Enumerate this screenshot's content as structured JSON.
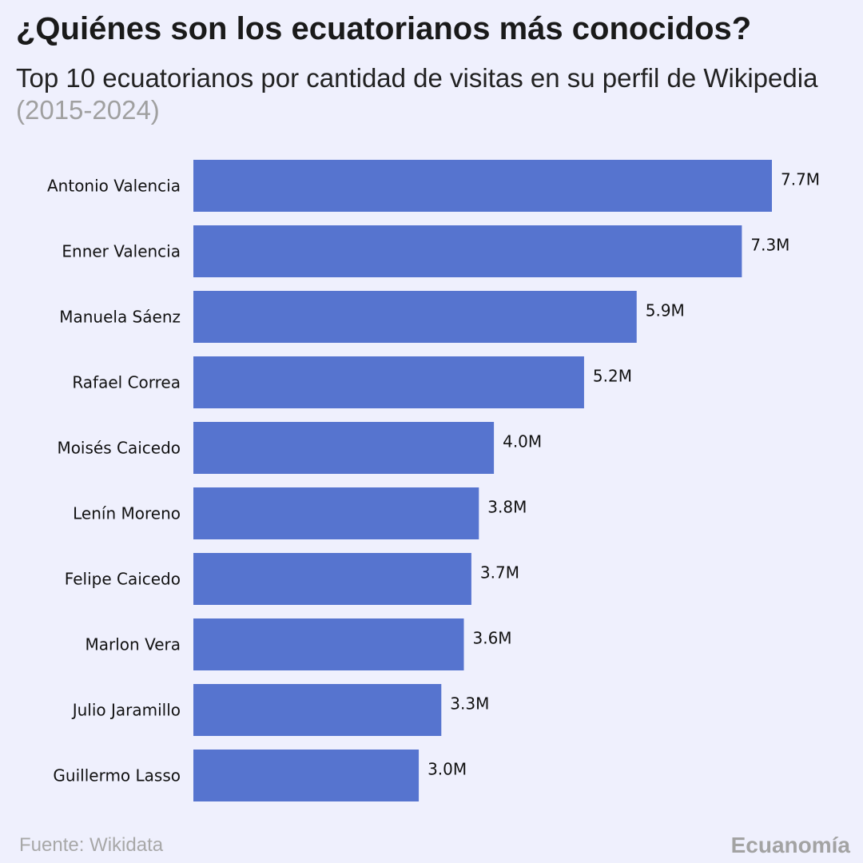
{
  "title": "¿Quiénes son los ecuatorianos más conocidos?",
  "subtitle": "Top 10 ecuatorianos por cantidad de visitas en su perfil de Wikipedia",
  "subtitle_period": "(2015-2024)",
  "source": "Fuente: Wikidata",
  "brand": "Ecuanomía",
  "colors": {
    "bar": "#5674cf",
    "background": "#eff0fd"
  },
  "chart_data": {
    "type": "bar",
    "orientation": "horizontal",
    "categories": [
      "Antonio Valencia",
      "Enner Valencia",
      "Manuela Sáenz",
      "Rafael Correa",
      "Moisés Caicedo",
      "Lenín Moreno",
      "Felipe Caicedo",
      "Marlon Vera",
      "Julio Jaramillo",
      "Guillermo Lasso"
    ],
    "values": [
      7.7,
      7.3,
      5.9,
      5.2,
      4.0,
      3.8,
      3.7,
      3.6,
      3.3,
      3.0
    ],
    "data_labels": [
      "7.7M",
      "7.3M",
      "5.9M",
      "5.2M",
      "4.0M",
      "3.8M",
      "3.7M",
      "3.6M",
      "3.3M",
      "3.0M"
    ],
    "unit": "M",
    "xlim": [
      0,
      7.7
    ],
    "grid": false,
    "axes_visible": false
  }
}
